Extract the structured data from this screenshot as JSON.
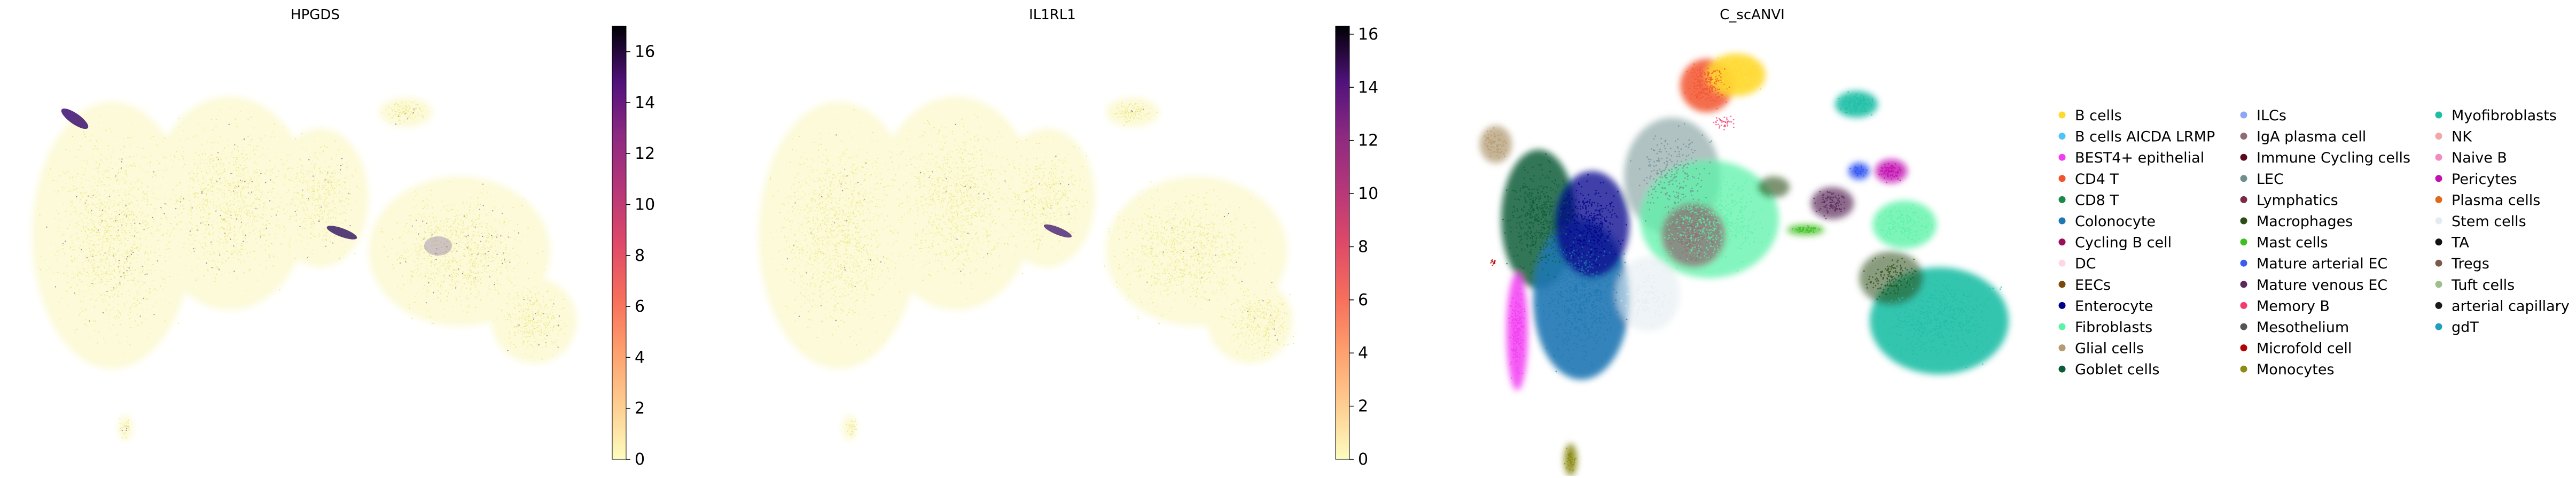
{
  "chart_data": [
    {
      "type": "scatter",
      "title": "HPGDS",
      "colorbar": {
        "colormap": "magma_r",
        "range": [
          0,
          17
        ],
        "ticks": [
          "0",
          "2",
          "4",
          "6",
          "8",
          "10",
          "12",
          "14",
          "16"
        ]
      },
      "axes_visible": false,
      "grid": false
    },
    {
      "type": "scatter",
      "title": "IL1RL1",
      "colorbar": {
        "colormap": "magma_r",
        "range": [
          0,
          16.3
        ],
        "ticks": [
          "0",
          "2",
          "4",
          "6",
          "8",
          "10",
          "12",
          "14",
          "16"
        ]
      },
      "axes_visible": false,
      "grid": false
    },
    {
      "type": "scatter",
      "title": "C_scANVI",
      "axes_visible": false,
      "grid": false,
      "legend_placement": "right",
      "legend": [
        {
          "label": "B cells",
          "color": "#ffd92f"
        },
        {
          "label": "B cells AICDA LRMP",
          "color": "#4fc3f7"
        },
        {
          "label": "BEST4+ epithelial",
          "color": "#f23cf2"
        },
        {
          "label": "CD4 T",
          "color": "#f2542d"
        },
        {
          "label": "CD8 T",
          "color": "#1a8a4a"
        },
        {
          "label": "Colonocyte",
          "color": "#1f77b4"
        },
        {
          "label": "Cycling B cell",
          "color": "#9c0e5a"
        },
        {
          "label": "DC",
          "color": "#ffd6e8"
        },
        {
          "label": "EECs",
          "color": "#7a4a0a"
        },
        {
          "label": "Enterocyte",
          "color": "#00008b"
        },
        {
          "label": "Fibroblasts",
          "color": "#5cf2a8"
        },
        {
          "label": "Glial cells",
          "color": "#b39b73"
        },
        {
          "label": "Goblet cells",
          "color": "#0b5d3a"
        },
        {
          "label": "ILCs",
          "color": "#8fa6f2"
        },
        {
          "label": "IgA plasma cell",
          "color": "#8c6d73"
        },
        {
          "label": "Immune Cycling cells",
          "color": "#5a0a1a"
        },
        {
          "label": "LEC",
          "color": "#6f8f8f"
        },
        {
          "label": "Lymphatics",
          "color": "#7a2b4a"
        },
        {
          "label": "Macrophages",
          "color": "#2a4d14"
        },
        {
          "label": "Mast cells",
          "color": "#3fbf1f"
        },
        {
          "label": "Mature arterial EC",
          "color": "#3a5cf2"
        },
        {
          "label": "Mature venous EC",
          "color": "#5a2a5a"
        },
        {
          "label": "Memory B",
          "color": "#f23c6a"
        },
        {
          "label": "Mesothelium",
          "color": "#555555"
        },
        {
          "label": "Microfold cell",
          "color": "#b30000"
        },
        {
          "label": "Monocytes",
          "color": "#8c8c14"
        },
        {
          "label": "Myofibroblasts",
          "color": "#1fbfa6"
        },
        {
          "label": "NK",
          "color": "#f2a6a6"
        },
        {
          "label": "Naive B",
          "color": "#f28cc0"
        },
        {
          "label": "Pericytes",
          "color": "#c20fb0"
        },
        {
          "label": "Plasma cells",
          "color": "#e06a1a"
        },
        {
          "label": "Stem cells",
          "color": "#e4ecf2"
        },
        {
          "label": "TA",
          "color": "#111111"
        },
        {
          "label": "Tregs",
          "color": "#7a5a4a"
        },
        {
          "label": "Tuft cells",
          "color": "#9cbf8c"
        },
        {
          "label": "arterial capillary",
          "color": "#1a1a1a"
        },
        {
          "label": "gdT",
          "color": "#1f9fbf"
        }
      ]
    }
  ]
}
